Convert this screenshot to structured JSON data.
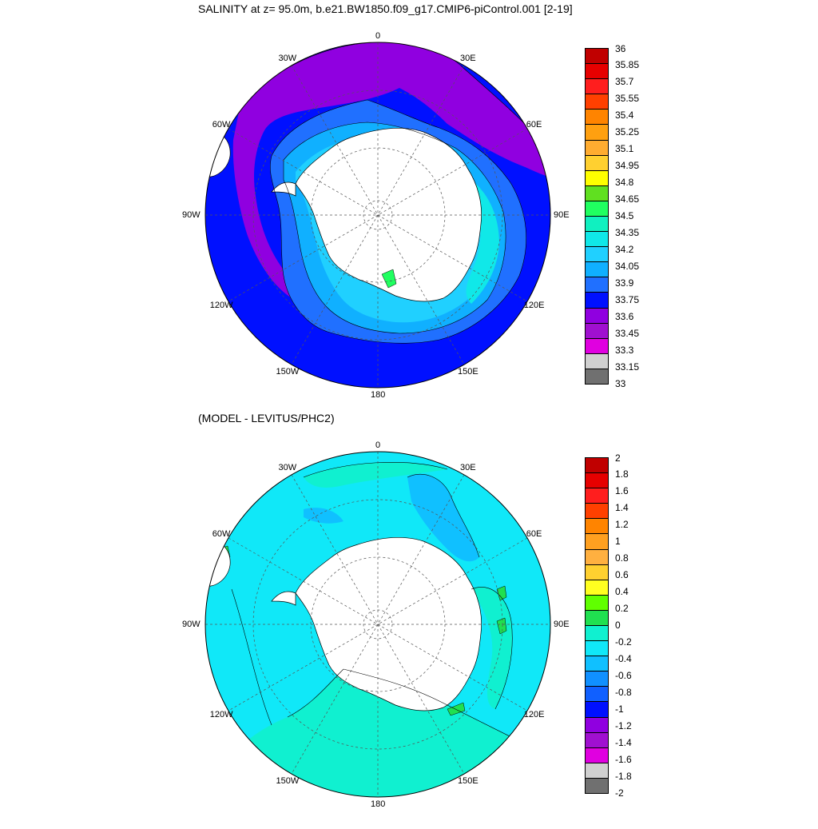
{
  "top_title": "SALINITY at z=  95.0m, b.e21.BW1850.f09_g17.CMIP6-piControl.001 [2-19]",
  "bottom_title": "(MODEL - LEVITUS/PHC2)",
  "lon_labels": [
    {
      "text": "0",
      "lon": 0
    },
    {
      "text": "30E",
      "lon": 30
    },
    {
      "text": "60E",
      "lon": 60
    },
    {
      "text": "90E",
      "lon": 90
    },
    {
      "text": "120E",
      "lon": 120
    },
    {
      "text": "150E",
      "lon": 150
    },
    {
      "text": "180",
      "lon": 180
    },
    {
      "text": "150W",
      "lon": -150
    },
    {
      "text": "120W",
      "lon": -120
    },
    {
      "text": "90W",
      "lon": -90
    },
    {
      "text": "60W",
      "lon": -60
    },
    {
      "text": "30W",
      "lon": -30
    }
  ],
  "projection": "south-polar-stereographic",
  "latitude_circles": [
    -40,
    -60,
    -80
  ],
  "top_map": {
    "variable": "salinity",
    "depth_m": 95.0,
    "colorbar": {
      "labels": [
        "36",
        "35.85",
        "35.7",
        "35.55",
        "35.4",
        "35.25",
        "35.1",
        "34.95",
        "34.8",
        "34.65",
        "34.5",
        "34.35",
        "34.2",
        "34.05",
        "33.9",
        "33.75",
        "33.6",
        "33.45",
        "33.3",
        "33.15",
        "33"
      ],
      "colors": [
        "#c00000",
        "#e60000",
        "#ff1e1e",
        "#ff4000",
        "#ff8400",
        "#ffa010",
        "#ffac30",
        "#ffd030",
        "#ffff00",
        "#60e020",
        "#20ff60",
        "#10f0c0",
        "#10e8e8",
        "#20d0ff",
        "#10b0ff",
        "#2070ff",
        "#0010ff",
        "#9000e0",
        "#a010d0",
        "#e000e0",
        "#d0d0d0",
        "#707070"
      ]
    }
  },
  "bottom_map": {
    "variable": "salinity difference",
    "colorbar": {
      "labels": [
        "2",
        "1.8",
        "1.6",
        "1.4",
        "1.2",
        "1",
        "0.8",
        "0.6",
        "0.4",
        "0.2",
        "0",
        "-0.2",
        "-0.4",
        "-0.6",
        "-0.8",
        "-1",
        "-1.2",
        "-1.4",
        "-1.6",
        "-1.8",
        "-2"
      ],
      "colors": [
        "#c00000",
        "#e60000",
        "#ff1e1e",
        "#ff4000",
        "#ff8400",
        "#ffa020",
        "#ffb040",
        "#ffd030",
        "#ffff20",
        "#60ff00",
        "#20e050",
        "#10f0d0",
        "#10e8f8",
        "#10c0ff",
        "#1090ff",
        "#1060ff",
        "#0010ff",
        "#9000e0",
        "#a010d0",
        "#e000e0",
        "#d0d0d0",
        "#707070"
      ]
    }
  }
}
